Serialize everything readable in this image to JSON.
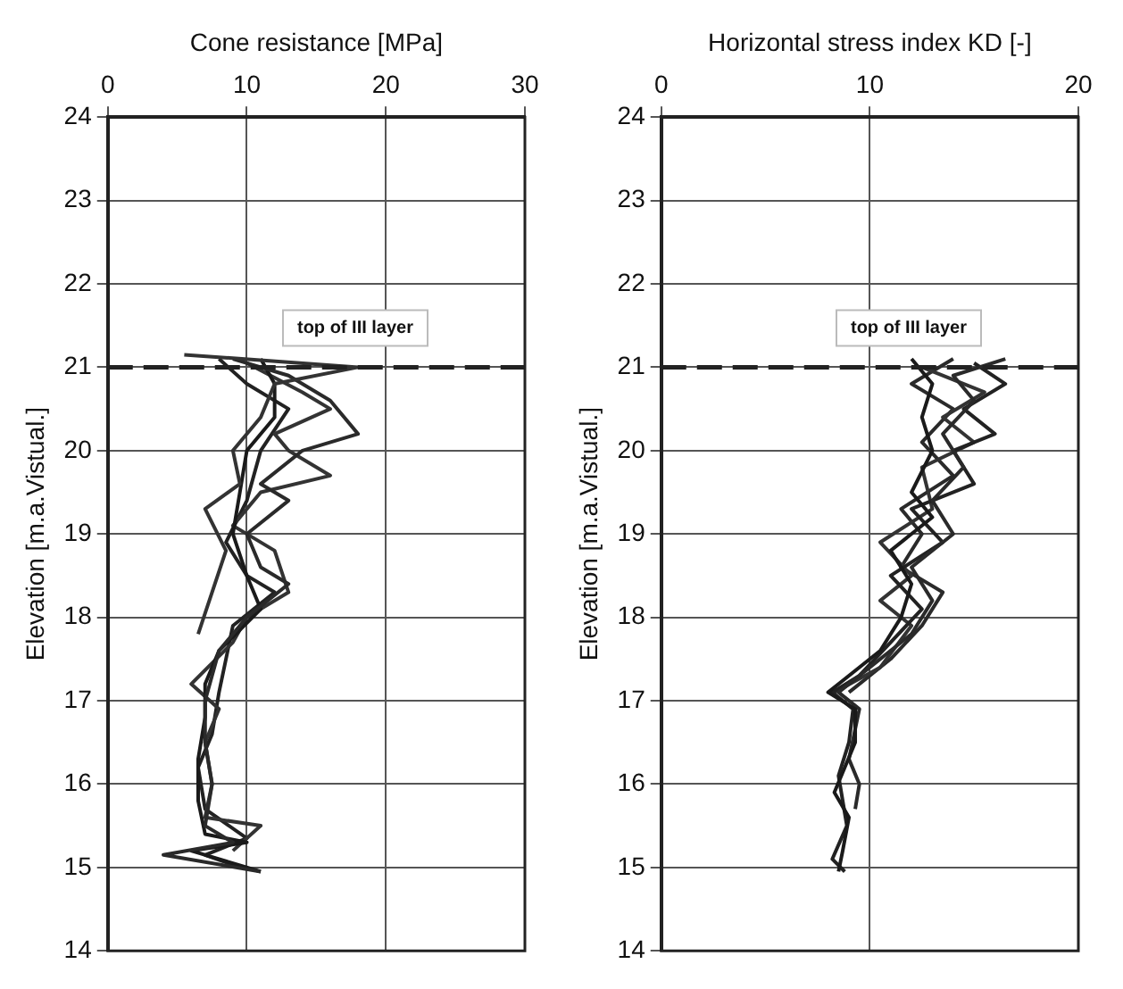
{
  "chart_data": [
    {
      "type": "line",
      "xlabel": "Cone resistance [MPa]",
      "ylabel": "Elevation [m.a.Vistual.]",
      "xlim": [
        0,
        30
      ],
      "xticks": [
        0,
        10,
        20,
        30
      ],
      "ylim": [
        14,
        24
      ],
      "yticks": [
        14,
        15,
        16,
        17,
        18,
        19,
        20,
        21,
        22,
        23,
        24
      ],
      "grid": true,
      "ref_lines": [
        {
          "axis": "y",
          "value": 21,
          "label": "top of III layer",
          "line_style": "dashed",
          "color": "#222222"
        }
      ],
      "series": [
        {
          "color": "#333333",
          "x": [
            5.5,
            18,
            12,
            11,
            9,
            9.5,
            7,
            8.5,
            7.5,
            6.5
          ],
          "values": [
            21.15,
            21.0,
            20.8,
            20.4,
            20.0,
            19.6,
            19.3,
            18.8,
            18.3,
            17.8
          ]
        },
        {
          "color": "#2a2a2a",
          "x": [
            9,
            13,
            16,
            18,
            14,
            11,
            13,
            10,
            11,
            13,
            10,
            8,
            7,
            7,
            7.5,
            7,
            9,
            4,
            11
          ],
          "values": [
            21.1,
            20.9,
            20.6,
            20.2,
            20.0,
            19.6,
            19.4,
            19.0,
            18.6,
            18.4,
            18.0,
            17.6,
            17.0,
            16.5,
            16.0,
            15.5,
            15.3,
            15.15,
            14.95
          ]
        },
        {
          "color": "#1a1a1a",
          "x": [
            11,
            12,
            12,
            10,
            9.5,
            9,
            10,
            11,
            8,
            7,
            7,
            6.5,
            6.5,
            7,
            10,
            6,
            11
          ],
          "values": [
            21.1,
            20.8,
            20.4,
            20.0,
            19.5,
            19.0,
            18.5,
            18.1,
            17.6,
            17.2,
            16.8,
            16.3,
            15.8,
            15.4,
            15.3,
            15.2,
            14.95
          ]
        },
        {
          "color": "#333333",
          "x": [
            10,
            14,
            16,
            12,
            13,
            16,
            11,
            9,
            12,
            13,
            10,
            9,
            6,
            8,
            7,
            7.5,
            7,
            11,
            9
          ],
          "values": [
            21.05,
            20.7,
            20.5,
            20.2,
            20.0,
            19.7,
            19.5,
            19.1,
            18.8,
            18.3,
            18.0,
            17.7,
            17.2,
            16.9,
            16.5,
            16.0,
            15.6,
            15.5,
            15.2
          ]
        },
        {
          "color": "#222222",
          "x": [
            8,
            10,
            13,
            11,
            10,
            8.5,
            10,
            12,
            9,
            8.5,
            8,
            7.5,
            6.5,
            7,
            10,
            7,
            9.5
          ],
          "values": [
            21.1,
            20.8,
            20.5,
            20.0,
            19.4,
            18.9,
            18.5,
            18.3,
            17.9,
            17.5,
            17.1,
            16.6,
            16.2,
            15.7,
            15.35,
            15.15,
            15.0
          ]
        }
      ]
    },
    {
      "type": "line",
      "xlabel": "Horizontal stress index KD [-]",
      "ylabel": "Elevation [m.a.Vistual.]",
      "xlim": [
        0,
        20
      ],
      "xticks": [
        0,
        10,
        20
      ],
      "ylim": [
        14,
        24
      ],
      "yticks": [
        14,
        15,
        16,
        17,
        18,
        19,
        20,
        21,
        22,
        23,
        24
      ],
      "grid": true,
      "ref_lines": [
        {
          "axis": "y",
          "value": 21,
          "label": "top of III layer",
          "line_style": "dashed",
          "color": "#222222"
        }
      ],
      "series": [
        {
          "color": "#1a1a1a",
          "x": [
            12,
            13,
            12.5,
            13,
            12,
            13,
            11,
            12,
            11.5,
            10.5,
            8,
            9.3,
            9.3,
            8.8,
            8.3,
            9,
            8.7,
            8.5
          ],
          "values": [
            21.1,
            20.8,
            20.4,
            20.0,
            19.5,
            19.2,
            18.8,
            18.4,
            18.0,
            17.6,
            17.1,
            16.9,
            16.5,
            16.2,
            15.9,
            15.6,
            15.2,
            14.95
          ]
        },
        {
          "color": "#2a2a2a",
          "x": [
            16.5,
            14,
            15,
            13.5,
            14.5,
            13,
            14,
            12,
            13,
            12,
            10,
            8.5,
            9.5,
            9,
            9.5,
            9.3
          ],
          "values": [
            21.1,
            20.9,
            20.6,
            20.2,
            19.8,
            19.4,
            19.0,
            18.6,
            18.2,
            17.8,
            17.4,
            17.1,
            16.9,
            16.3,
            16.0,
            15.7
          ]
        },
        {
          "color": "#222222",
          "x": [
            15,
            16.5,
            14.5,
            16,
            14,
            15,
            12,
            13.5,
            11,
            12.5,
            11,
            9.5,
            8.2,
            9.2,
            9,
            8.5,
            8.9,
            8.2,
            8.8
          ],
          "values": [
            21.05,
            20.8,
            20.5,
            20.2,
            20.0,
            19.6,
            19.3,
            18.9,
            18.5,
            18.1,
            17.7,
            17.3,
            17.1,
            16.9,
            16.5,
            16.1,
            15.5,
            15.1,
            14.95
          ]
        },
        {
          "color": "#333333",
          "x": [
            12.5,
            15.5,
            13.5,
            15,
            12.5,
            13,
            10.5,
            12,
            10.5,
            12,
            10.5,
            8.3
          ],
          "values": [
            21.0,
            20.7,
            20.4,
            20.1,
            19.8,
            19.3,
            18.9,
            18.5,
            18.2,
            17.9,
            17.4,
            17.1
          ]
        },
        {
          "color": "#2a2a2a",
          "x": [
            14,
            12,
            14,
            12.5,
            14,
            11.5,
            12.5,
            11.5,
            13.5,
            12.5,
            11,
            9
          ],
          "values": [
            21.1,
            20.8,
            20.5,
            20.1,
            19.7,
            19.3,
            19.0,
            18.6,
            18.3,
            17.9,
            17.5,
            17.1
          ]
        }
      ]
    }
  ]
}
